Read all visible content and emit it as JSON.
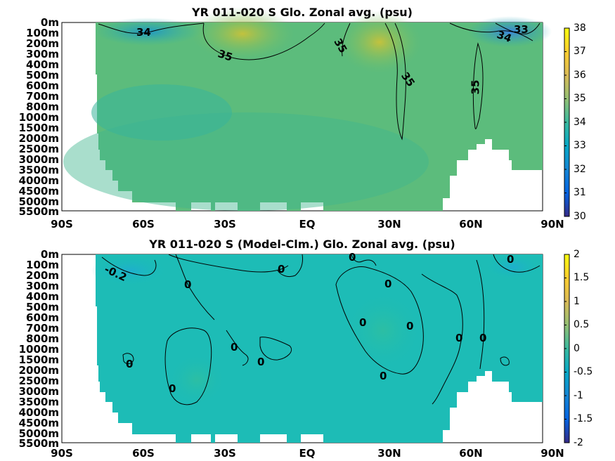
{
  "chart_data": [
    {
      "type": "heatmap",
      "title": "YR 011-020 S Glo. Zonal avg. (psu)",
      "x_tick_labels": [
        "90S",
        "60S",
        "30S",
        "EQ",
        "30N",
        "60N",
        "90N"
      ],
      "y_tick_labels": [
        "0m",
        "100m",
        "200m",
        "300m",
        "400m",
        "500m",
        "600m",
        "700m",
        "800m",
        "1000m",
        "1500m",
        "2000m",
        "2500m",
        "3000m",
        "3500m",
        "4000m",
        "4500m",
        "5000m",
        "5500m"
      ],
      "colorbar_ticks": [
        "38",
        "37",
        "36",
        "35",
        "34",
        "33",
        "32",
        "31",
        "30"
      ],
      "colorbar_range": [
        30,
        38
      ],
      "colormap": "parula",
      "contour_labels": [
        "34",
        "35",
        "35",
        "35",
        "35",
        "33",
        "34"
      ],
      "background_salinity_psu": 34.7
    },
    {
      "type": "heatmap",
      "title": "YR 011-020 S (Model-Clm.) Glo. Zonal avg. (psu)",
      "x_tick_labels": [
        "90S",
        "60S",
        "30S",
        "EQ",
        "30N",
        "60N",
        "90N"
      ],
      "y_tick_labels": [
        "0m",
        "100m",
        "200m",
        "300m",
        "400m",
        "500m",
        "600m",
        "700m",
        "800m",
        "1000m",
        "1500m",
        "2000m",
        "2500m",
        "3000m",
        "3500m",
        "4000m",
        "4500m",
        "5000m",
        "5500m"
      ],
      "colorbar_ticks": [
        "2",
        "1.5",
        "1",
        "0.5",
        "0",
        "-0.5",
        "-1",
        "-1.5",
        "-2"
      ],
      "colorbar_range": [
        -2,
        2
      ],
      "colormap": "parula",
      "contour_labels": [
        "-0.2",
        "0",
        "0",
        "0",
        "0",
        "0",
        "0",
        "0",
        "0",
        "0",
        "0",
        "0",
        "0",
        "0",
        "0"
      ],
      "background_anomaly_psu": 0.0
    }
  ],
  "colors": {
    "parula_low": "#352a87",
    "parula_mid": "#21b1a3",
    "parula_high": "#f9fb0e",
    "land_mask": "#ffffff"
  }
}
